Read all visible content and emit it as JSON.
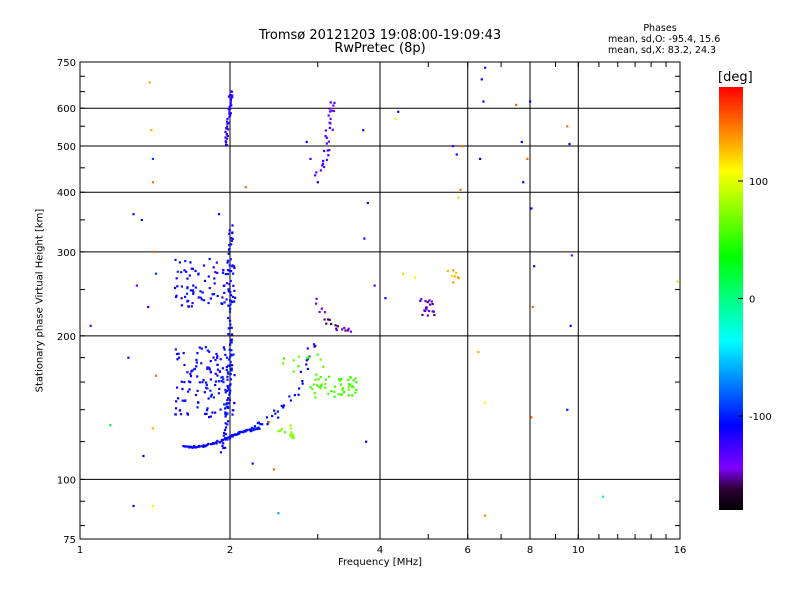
{
  "chart_data": {
    "type": "scatter",
    "title": "Tromsø 20121203 19:08:00-19:09:43",
    "subtitle": "RwPretec (8p)",
    "xlabel": "Frequency [MHz]",
    "ylabel": "Stationary phase Virtual Height [km]",
    "x_scale": "log",
    "y_scale": "log",
    "xlim": [
      1,
      16
    ],
    "ylim": [
      75,
      750
    ],
    "x_ticks": [
      1,
      2,
      4,
      6,
      8,
      10,
      16
    ],
    "y_ticks": [
      75,
      100,
      200,
      300,
      400,
      500,
      600,
      750
    ],
    "grid": true,
    "stats": {
      "heading": "Phases",
      "line1": "mean, sd,O: -95.4, 15.6",
      "line2": "mean, sd,X:  83.2, 24.3"
    },
    "colorbar": {
      "label": "[deg]",
      "range": [
        -180,
        180
      ],
      "ticks": [
        100,
        0,
        -100
      ],
      "colormap": "rainbow (black-purple-blue-cyan-green-yellow-orange-red)"
    },
    "clusters": [
      {
        "kind": "trace",
        "points": [
          [
            1.62,
            117,
            -110
          ],
          [
            1.7,
            117,
            -110
          ],
          [
            1.8,
            118,
            -110
          ],
          [
            1.9,
            120,
            -108
          ],
          [
            1.98,
            122,
            -108
          ],
          [
            2.05,
            124,
            -106
          ],
          [
            2.12,
            126,
            -105
          ],
          [
            2.2,
            127,
            -105
          ],
          [
            2.3,
            128,
            -104
          ]
        ],
        "n": 80,
        "spread": 0.01
      },
      {
        "kind": "trace",
        "points": [
          [
            1.93,
            115,
            -110
          ],
          [
            1.96,
            130,
            -110
          ],
          [
            1.98,
            150,
            -108
          ],
          [
            2.0,
            175,
            -106
          ],
          [
            2.0,
            200,
            -104
          ],
          [
            2.0,
            240,
            -106
          ],
          [
            2.0,
            300,
            -108
          ],
          [
            2.01,
            340,
            -110
          ]
        ],
        "n": 80,
        "spread": 0.02
      },
      {
        "kind": "trace",
        "points": [
          [
            1.96,
            500,
            -120
          ],
          [
            1.97,
            540,
            -120
          ],
          [
            1.99,
            580,
            -120
          ],
          [
            2.0,
            620,
            -120
          ],
          [
            2.01,
            650,
            -120
          ]
        ],
        "n": 40,
        "spread": 0.015
      },
      {
        "kind": "trace",
        "points": [
          [
            2.2,
            128,
            -105
          ],
          [
            2.35,
            132,
            -105
          ],
          [
            2.5,
            138,
            -105
          ],
          [
            2.7,
            150,
            -104
          ],
          [
            2.85,
            175,
            -110
          ],
          [
            2.95,
            195,
            -125
          ]
        ],
        "n": 35,
        "spread": 0.03
      },
      {
        "kind": "trace",
        "points": [
          [
            3.0,
            440,
            -130
          ],
          [
            3.1,
            470,
            -132
          ],
          [
            3.15,
            520,
            -132
          ],
          [
            3.2,
            580,
            -134
          ],
          [
            3.22,
            620,
            -134
          ]
        ],
        "n": 30,
        "spread": 0.03
      },
      {
        "kind": "trace",
        "points": [
          [
            3.0,
            240,
            -140
          ],
          [
            3.1,
            220,
            -145
          ],
          [
            3.2,
            210,
            -150
          ],
          [
            3.35,
            205,
            -145
          ],
          [
            3.5,
            205,
            -140
          ]
        ],
        "n": 20,
        "spread": 0.03
      },
      {
        "kind": "blob",
        "x": [
          1.55,
          2.05
        ],
        "y": [
          135,
          190
        ],
        "phase": -108,
        "n": 140
      },
      {
        "kind": "blob",
        "x": [
          1.55,
          2.05
        ],
        "y": [
          230,
          290
        ],
        "phase": -110,
        "n": 90
      },
      {
        "kind": "blob",
        "x": [
          2.9,
          3.6
        ],
        "y": [
          148,
          165
        ],
        "phase": 55,
        "n": 50
      },
      {
        "kind": "blob",
        "x": [
          2.5,
          2.7
        ],
        "y": [
          122,
          130
        ],
        "phase": 70,
        "n": 14
      },
      {
        "kind": "blob",
        "x": [
          2.5,
          3.1
        ],
        "y": [
          165,
          185
        ],
        "phase": 60,
        "n": 12
      },
      {
        "kind": "blob",
        "x": [
          4.8,
          5.2
        ],
        "y": [
          220,
          240
        ],
        "phase": -140,
        "n": 20
      },
      {
        "kind": "blob",
        "x": [
          5.4,
          5.8
        ],
        "y": [
          255,
          275
        ],
        "phase": 130,
        "n": 8
      }
    ],
    "points": [
      [
        1.05,
        210,
        -130
      ],
      [
        1.15,
        130,
        20
      ],
      [
        1.25,
        180,
        -110
      ],
      [
        1.28,
        360,
        -115
      ],
      [
        1.3,
        255,
        -140
      ],
      [
        1.33,
        350,
        -110
      ],
      [
        1.34,
        112,
        -110
      ],
      [
        1.37,
        230,
        -120
      ],
      [
        1.38,
        680,
        130
      ],
      [
        1.39,
        540,
        130
      ],
      [
        1.4,
        420,
        150
      ],
      [
        1.41,
        300,
        150
      ],
      [
        1.42,
        270,
        -90
      ],
      [
        1.4,
        470,
        -90
      ],
      [
        1.4,
        88,
        110
      ],
      [
        1.28,
        88,
        -110
      ],
      [
        1.42,
        165,
        150
      ],
      [
        1.4,
        128,
        130
      ],
      [
        1.9,
        360,
        -110
      ],
      [
        1.82,
        290,
        -105
      ],
      [
        2.15,
        410,
        150
      ],
      [
        2.22,
        108,
        -110
      ],
      [
        2.4,
        132,
        130
      ],
      [
        2.5,
        85,
        -60
      ],
      [
        2.45,
        105,
        150
      ],
      [
        2.9,
        470,
        -130
      ],
      [
        2.85,
        510,
        -110
      ],
      [
        3.0,
        420,
        -110
      ],
      [
        3.7,
        540,
        -110
      ],
      [
        3.72,
        320,
        -100
      ],
      [
        3.75,
        120,
        -110
      ],
      [
        3.78,
        380,
        -110
      ],
      [
        3.9,
        255,
        -130
      ],
      [
        4.3,
        570,
        100
      ],
      [
        4.35,
        590,
        -110
      ],
      [
        4.1,
        240,
        -110
      ],
      [
        4.45,
        270,
        120
      ],
      [
        4.7,
        265,
        100
      ],
      [
        5.6,
        500,
        -120
      ],
      [
        5.7,
        480,
        -110
      ],
      [
        5.8,
        405,
        150
      ],
      [
        5.75,
        390,
        120
      ],
      [
        5.85,
        500,
        150
      ],
      [
        6.3,
        185,
        130
      ],
      [
        6.35,
        470,
        -110
      ],
      [
        6.5,
        145,
        110
      ],
      [
        6.4,
        690,
        -110
      ],
      [
        6.45,
        620,
        -110
      ],
      [
        6.5,
        84,
        140
      ],
      [
        6.5,
        730,
        -100
      ],
      [
        7.5,
        610,
        150
      ],
      [
        7.7,
        510,
        -110
      ],
      [
        7.75,
        420,
        -110
      ],
      [
        7.9,
        470,
        150
      ],
      [
        8.0,
        620,
        -110
      ],
      [
        8.05,
        370,
        -110
      ],
      [
        8.1,
        230,
        150
      ],
      [
        8.15,
        280,
        -110
      ],
      [
        8.05,
        135,
        150
      ],
      [
        9.5,
        550,
        150
      ],
      [
        9.5,
        140,
        -100
      ],
      [
        9.6,
        505,
        -110
      ],
      [
        9.65,
        210,
        -110
      ],
      [
        9.7,
        295,
        -140
      ],
      [
        11.2,
        92,
        -40
      ],
      [
        15.8,
        260,
        90
      ]
    ]
  }
}
